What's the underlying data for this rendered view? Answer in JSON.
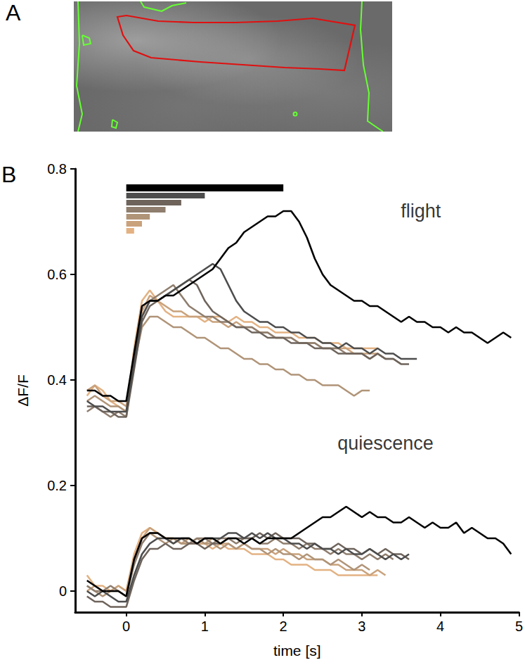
{
  "panel_labels": [
    "A",
    "B"
  ],
  "chart_data": {
    "type": "line",
    "x_label": "time [s]",
    "y_label": "ΔF/F",
    "xlim": [
      -0.65,
      5
    ],
    "xticks": [
      0,
      1,
      2,
      3,
      4,
      5
    ],
    "ylim": [
      -0.04,
      0.8
    ],
    "yticks": [
      0,
      0.2,
      0.4,
      0.6,
      0.8
    ],
    "grid": false,
    "stimuli": [
      {
        "duration": 2,
        "color": "#000000"
      },
      {
        "duration": 1,
        "color": "#4d4d4d"
      },
      {
        "duration": 0.7,
        "color": "#6e645c"
      },
      {
        "duration": 0.5,
        "color": "#8f7e6e"
      },
      {
        "duration": 0.3,
        "color": "#b09478"
      },
      {
        "duration": 0.2,
        "color": "#c9a27c"
      },
      {
        "duration": 0.1,
        "color": "#e3b283"
      }
    ],
    "x": [
      -0.5,
      -0.4,
      -0.3,
      -0.2,
      -0.1,
      0,
      0.1,
      0.2,
      0.3,
      0.4,
      0.5,
      0.6,
      0.7,
      0.8,
      0.9,
      1,
      1.1,
      1.2,
      1.3,
      1.4,
      1.5,
      1.6,
      1.7,
      1.8,
      1.9,
      2,
      2.1,
      2.2,
      2.3,
      2.4,
      2.5,
      2.6,
      2.7,
      2.8,
      2.9,
      3,
      3.1,
      3.2,
      3.3,
      3.4,
      3.5,
      3.6,
      3.7,
      3.8,
      3.9,
      4,
      4.1,
      4.2,
      4.3,
      4.4,
      4.5,
      4.6,
      4.7,
      4.8,
      4.9
    ],
    "groups": [
      {
        "label": "flight",
        "label_x": 3.75,
        "label_y": 0.72,
        "series": [
          {
            "color": "#e3b283",
            "values": [
              0.37,
              0.39,
              0.38,
              0.36,
              0.35,
              0.34,
              0.46,
              0.55,
              0.57,
              0.55,
              0.53,
              0.52,
              0.52,
              0.52,
              0.52,
              0.51,
              0.52,
              0.52,
              0.51,
              0.52,
              0.51,
              0.51,
              0.5,
              0.5,
              0.49,
              0.49,
              0.49,
              0.48,
              0.48,
              0.48,
              0.47,
              0.47,
              0.47,
              0.46,
              0.46,
              0.46,
              0.46,
              0.46,
              null,
              null,
              null,
              null,
              null,
              null,
              null,
              null,
              null,
              null,
              null,
              null,
              null,
              null,
              null,
              null,
              null
            ]
          },
          {
            "color": "#c9a27c",
            "values": [
              0.38,
              0.39,
              0.37,
              0.36,
              0.36,
              0.35,
              0.45,
              0.53,
              0.56,
              0.55,
              0.54,
              0.53,
              0.53,
              0.52,
              0.52,
              0.52,
              0.51,
              0.51,
              0.5,
              0.51,
              0.5,
              0.5,
              0.49,
              0.49,
              0.48,
              0.48,
              0.48,
              0.47,
              0.47,
              0.47,
              0.46,
              0.46,
              0.46,
              0.46,
              0.45,
              0.45,
              0.45,
              0.45,
              0.44,
              null,
              null,
              null,
              null,
              null,
              null,
              null,
              null,
              null,
              null,
              null,
              null,
              null,
              null,
              null,
              null
            ]
          },
          {
            "color": "#b09478",
            "values": [
              0.36,
              0.37,
              0.36,
              0.35,
              0.35,
              0.34,
              0.43,
              0.5,
              0.52,
              0.52,
              0.51,
              0.5,
              0.5,
              0.49,
              0.48,
              0.48,
              0.47,
              0.46,
              0.46,
              0.45,
              0.44,
              0.44,
              0.43,
              0.43,
              0.42,
              0.42,
              0.41,
              0.41,
              0.4,
              0.4,
              0.39,
              0.39,
              0.39,
              0.38,
              0.37,
              0.38,
              0.38,
              null,
              null,
              null,
              null,
              null,
              null,
              null,
              null,
              null,
              null,
              null,
              null,
              null,
              null,
              null,
              null,
              null,
              null
            ]
          },
          {
            "color": "#8f7e6e",
            "values": [
              0.34,
              0.35,
              0.34,
              0.33,
              0.34,
              0.33,
              0.44,
              0.52,
              0.55,
              0.56,
              0.57,
              0.58,
              0.56,
              0.54,
              0.53,
              0.52,
              0.52,
              0.51,
              0.51,
              0.5,
              0.5,
              0.5,
              0.49,
              0.49,
              0.48,
              0.48,
              0.48,
              0.47,
              0.47,
              0.47,
              0.46,
              0.46,
              0.46,
              0.45,
              0.45,
              0.45,
              0.44,
              0.45,
              0.44,
              0.44,
              0.43,
              null,
              null,
              null,
              null,
              null,
              null,
              null,
              null,
              null,
              null,
              null,
              null,
              null,
              null
            ]
          },
          {
            "color": "#6e645c",
            "values": [
              0.35,
              0.35,
              0.34,
              0.34,
              0.33,
              0.33,
              0.42,
              0.51,
              0.54,
              0.55,
              0.56,
              0.57,
              0.58,
              0.59,
              0.58,
              0.55,
              0.53,
              0.52,
              0.51,
              0.5,
              0.5,
              0.49,
              0.49,
              0.48,
              0.48,
              0.48,
              0.47,
              0.47,
              0.47,
              0.46,
              0.46,
              0.46,
              0.45,
              0.45,
              0.45,
              0.45,
              0.44,
              0.45,
              0.44,
              0.44,
              0.43,
              0.43,
              null,
              null,
              null,
              null,
              null,
              null,
              null,
              null,
              null,
              null,
              null,
              null,
              null
            ]
          },
          {
            "color": "#4d4d4d",
            "values": [
              0.36,
              0.35,
              0.35,
              0.34,
              0.34,
              0.34,
              0.43,
              0.52,
              0.55,
              0.55,
              0.56,
              0.57,
              0.58,
              0.59,
              0.6,
              0.61,
              0.62,
              0.61,
              0.58,
              0.55,
              0.53,
              0.52,
              0.51,
              0.51,
              0.5,
              0.5,
              0.49,
              0.49,
              0.48,
              0.48,
              0.47,
              0.47,
              0.46,
              0.47,
              0.46,
              0.46,
              0.45,
              0.46,
              0.45,
              0.45,
              0.44,
              0.44,
              0.44,
              null,
              null,
              null,
              null,
              null,
              null,
              null,
              null,
              null,
              null,
              null,
              null
            ]
          },
          {
            "color": "#000000",
            "values": [
              0.38,
              0.38,
              0.37,
              0.37,
              0.36,
              0.36,
              0.45,
              0.54,
              0.55,
              0.55,
              0.56,
              0.56,
              0.57,
              0.58,
              0.59,
              0.6,
              0.61,
              0.63,
              0.65,
              0.66,
              0.68,
              0.69,
              0.7,
              0.71,
              0.71,
              0.72,
              0.72,
              0.7,
              0.67,
              0.63,
              0.6,
              0.58,
              0.57,
              0.56,
              0.55,
              0.55,
              0.54,
              0.54,
              0.53,
              0.52,
              0.51,
              0.52,
              0.51,
              0.51,
              0.5,
              0.5,
              0.49,
              0.5,
              0.49,
              0.49,
              0.48,
              0.47,
              0.48,
              0.49,
              0.48
            ]
          }
        ]
      },
      {
        "label": "quiescence",
        "label_x": 3.3,
        "label_y": 0.28,
        "series": [
          {
            "color": "#e3b283",
            "values": [
              0.03,
              0.01,
              0.01,
              0.0,
              0.01,
              0.0,
              0.07,
              0.11,
              0.12,
              0.11,
              0.1,
              0.1,
              0.09,
              0.09,
              0.09,
              0.09,
              0.08,
              0.09,
              0.08,
              0.08,
              0.08,
              0.07,
              0.07,
              0.07,
              0.06,
              0.06,
              0.05,
              0.05,
              0.05,
              0.04,
              0.04,
              0.04,
              0.03,
              0.03,
              0.03,
              0.03,
              0.03,
              0.03,
              null,
              null,
              null,
              null,
              null,
              null,
              null,
              null,
              null,
              null,
              null,
              null,
              null,
              null,
              null,
              null,
              null
            ]
          },
          {
            "color": "#c9a27c",
            "values": [
              0.0,
              0.01,
              0.0,
              0.0,
              0.01,
              0.0,
              0.06,
              0.1,
              0.12,
              0.11,
              0.1,
              0.1,
              0.09,
              0.1,
              0.09,
              0.09,
              0.1,
              0.09,
              0.09,
              0.08,
              0.09,
              0.08,
              0.08,
              0.08,
              0.07,
              0.08,
              0.07,
              0.07,
              0.06,
              0.06,
              0.06,
              0.05,
              0.05,
              0.04,
              0.04,
              0.04,
              0.03,
              0.04,
              0.03,
              null,
              null,
              null,
              null,
              null,
              null,
              null,
              null,
              null,
              null,
              null,
              null,
              null,
              null,
              null,
              null
            ]
          },
          {
            "color": "#b09478",
            "values": [
              0.01,
              0.0,
              -0.01,
              0.0,
              0.0,
              -0.01,
              0.06,
              0.1,
              0.11,
              0.1,
              0.09,
              0.1,
              0.09,
              0.09,
              0.1,
              0.09,
              0.09,
              0.08,
              0.09,
              0.08,
              0.09,
              0.08,
              0.08,
              0.07,
              0.08,
              0.07,
              0.07,
              0.06,
              0.07,
              0.06,
              0.06,
              0.05,
              0.06,
              0.05,
              0.04,
              0.05,
              0.04,
              null,
              null,
              null,
              null,
              null,
              null,
              null,
              null,
              null,
              null,
              null,
              null,
              null,
              null,
              null,
              null,
              null,
              null
            ]
          },
          {
            "color": "#8f7e6e",
            "values": [
              0.01,
              0.0,
              0.0,
              0.01,
              0.0,
              -0.01,
              0.05,
              0.09,
              0.11,
              0.11,
              0.1,
              0.09,
              0.1,
              0.09,
              0.1,
              0.1,
              0.09,
              0.1,
              0.1,
              0.09,
              0.1,
              0.1,
              0.09,
              0.09,
              0.1,
              0.09,
              0.09,
              0.08,
              0.09,
              0.08,
              0.08,
              0.07,
              0.08,
              0.07,
              0.07,
              0.06,
              0.07,
              0.06,
              0.07,
              0.06,
              null,
              null,
              null,
              null,
              null,
              null,
              null,
              null,
              null,
              null,
              null,
              null,
              null,
              null,
              null
            ]
          },
          {
            "color": "#6e645c",
            "values": [
              -0.01,
              -0.02,
              -0.02,
              -0.03,
              -0.03,
              -0.03,
              0.02,
              0.06,
              0.08,
              0.08,
              0.09,
              0.08,
              0.08,
              0.09,
              0.09,
              0.08,
              0.09,
              0.09,
              0.1,
              0.1,
              0.1,
              0.1,
              0.11,
              0.1,
              0.11,
              0.1,
              0.1,
              0.1,
              0.09,
              0.09,
              0.08,
              0.08,
              0.09,
              0.08,
              0.08,
              0.07,
              0.08,
              0.07,
              0.08,
              0.07,
              0.07,
              0.06,
              null,
              null,
              null,
              null,
              null,
              null,
              null,
              null,
              null,
              null,
              null,
              null,
              null
            ]
          },
          {
            "color": "#4d4d4d",
            "values": [
              0.0,
              -0.01,
              0.0,
              -0.01,
              -0.02,
              -0.02,
              0.03,
              0.07,
              0.09,
              0.1,
              0.1,
              0.09,
              0.1,
              0.1,
              0.09,
              0.1,
              0.1,
              0.1,
              0.11,
              0.11,
              0.1,
              0.11,
              0.1,
              0.11,
              0.1,
              0.1,
              0.09,
              0.09,
              0.08,
              0.09,
              0.08,
              0.08,
              0.07,
              0.08,
              0.07,
              0.07,
              0.08,
              0.07,
              0.06,
              0.07,
              0.06,
              0.07,
              null,
              null,
              null,
              null,
              null,
              null,
              null,
              null,
              null,
              null,
              null,
              null,
              null
            ]
          },
          {
            "color": "#000000",
            "values": [
              0.02,
              0.01,
              0.0,
              0.0,
              0.0,
              -0.01,
              0.06,
              0.1,
              0.11,
              0.11,
              0.1,
              0.1,
              0.1,
              0.1,
              0.09,
              0.1,
              0.1,
              0.09,
              0.1,
              0.1,
              0.09,
              0.1,
              0.09,
              0.1,
              0.1,
              0.1,
              0.1,
              0.11,
              0.12,
              0.13,
              0.14,
              0.14,
              0.15,
              0.16,
              0.15,
              0.14,
              0.15,
              0.14,
              0.14,
              0.13,
              0.13,
              0.14,
              0.13,
              0.12,
              0.13,
              0.12,
              0.12,
              0.13,
              0.11,
              0.12,
              0.11,
              0.1,
              0.1,
              0.09,
              0.07
            ]
          }
        ]
      }
    ]
  }
}
